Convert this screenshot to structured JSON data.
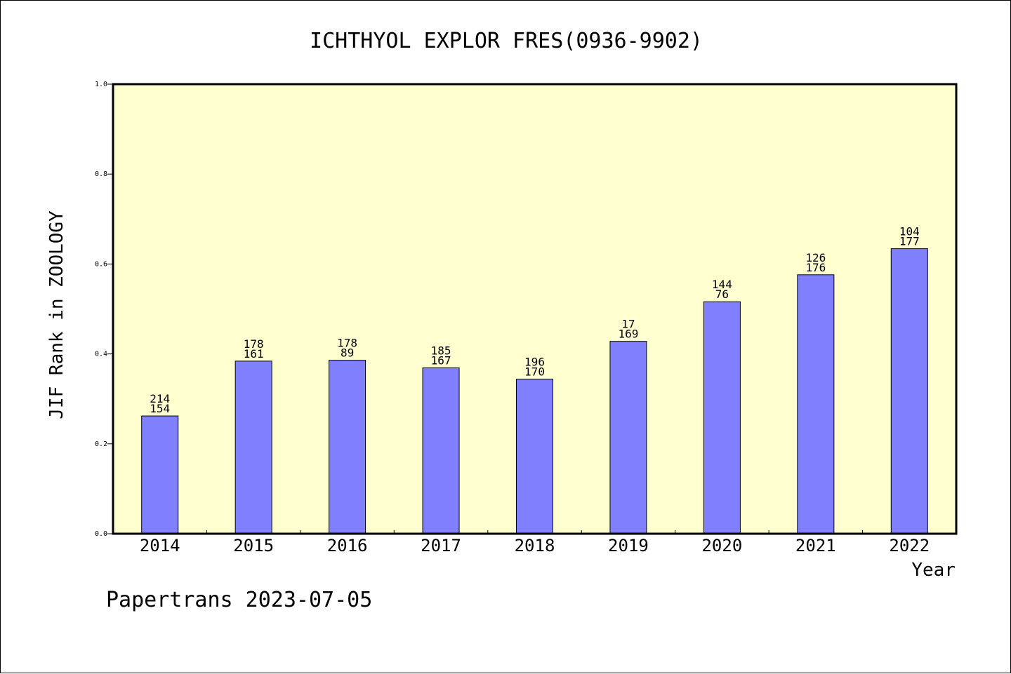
{
  "chart_data": {
    "type": "bar",
    "title": "ICHTHYOL EXPLOR FRES(0936-9902)",
    "xlabel": "Year",
    "ylabel": "JIF Rank in ZOOLOGY",
    "footer": "Papertrans 2023-07-05",
    "ylim": [
      0,
      1.0
    ],
    "yticks": [
      "0.0",
      "0.2",
      "0.4",
      "0.6",
      "0.8",
      "1.0"
    ],
    "categories": [
      "2014",
      "2015",
      "2016",
      "2017",
      "2018",
      "2019",
      "2020",
      "2021",
      "2022"
    ],
    "values": [
      0.262,
      0.384,
      0.386,
      0.369,
      0.344,
      0.428,
      0.516,
      0.576,
      0.634
    ],
    "label_top": [
      "214",
      "178",
      "178",
      "185",
      "196",
      "17",
      "144",
      "126",
      "104"
    ],
    "label_bottom": [
      "154",
      "161",
      "89",
      "167",
      "170",
      "169",
      "76",
      "176",
      "177"
    ],
    "grid": false,
    "colors": {
      "plot_bg": "#FFFFD0",
      "bar": "#8080FF",
      "bar_edge": "#000000",
      "axis": "#000000"
    }
  }
}
